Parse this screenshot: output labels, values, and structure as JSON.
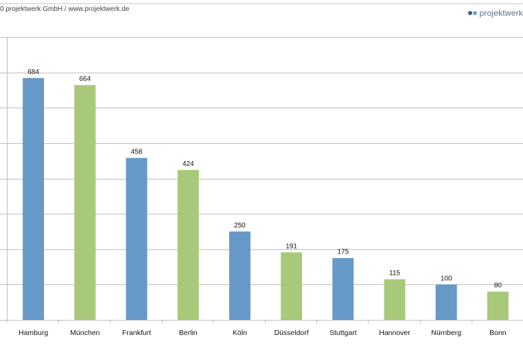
{
  "header": {
    "copyright": "0 projektwerk GmbH / www.projektwerk.de",
    "logo_text": "projektwerk",
    "logo_icon": "two-circles-icon"
  },
  "colors": {
    "blue": "#6699c8",
    "green": "#a9c97a",
    "gridline": "#bdbdbd",
    "logo_dot_dark": "#3d5a80",
    "logo_dot_light": "#6fa3d8"
  },
  "chart_data": {
    "type": "bar",
    "title": "",
    "xlabel": "",
    "ylabel": "",
    "categories": [
      "Hamburg",
      "München",
      "Frankfurt",
      "Berlin",
      "Köln",
      "Düsseldorf",
      "Stuttgart",
      "Hannover",
      "Nürnberg",
      "Bonn"
    ],
    "values": [
      684,
      664,
      458,
      424,
      250,
      191,
      175,
      115,
      100,
      80
    ],
    "bar_colors": [
      "blue",
      "green",
      "blue",
      "green",
      "blue",
      "green",
      "blue",
      "green",
      "blue",
      "green"
    ],
    "ylim": [
      0,
      800
    ],
    "ytick_step": 100,
    "grid": true,
    "legend": "none",
    "data_labels": true
  }
}
